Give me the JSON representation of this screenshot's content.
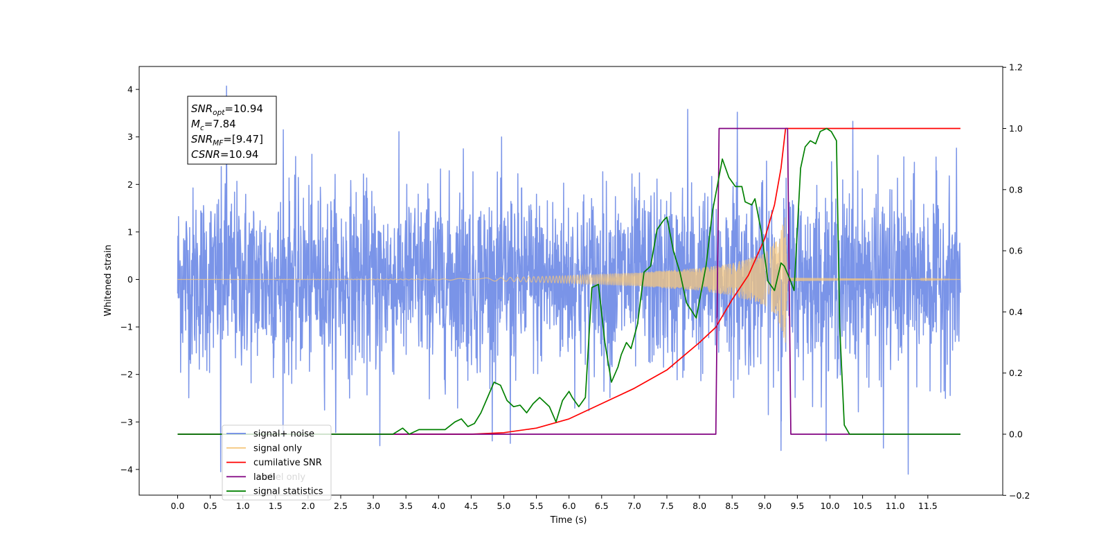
{
  "chart_data": {
    "type": "line",
    "xlabel": "Time (s)",
    "ylabel": "Whitened strain",
    "xlim": [
      -0.6,
      12.6
    ],
    "ylim": [
      -4.5,
      4.45
    ],
    "ylim_right": [
      -0.2,
      1.2
    ],
    "x_ticks": [
      "0.0",
      "0.5",
      "1.0",
      "1.5",
      "2.0",
      "2.5",
      "3.0",
      "3.5",
      "4.0",
      "4.5",
      "5.0",
      "5.5",
      "6.0",
      "6.5",
      "7.0",
      "7.5",
      "8.0",
      "8.5",
      "9.0",
      "9.5",
      "10.0",
      "10.5",
      "11.0",
      "11.5"
    ],
    "y_ticks_left": [
      "−4",
      "−3",
      "−2",
      "−1",
      "0",
      "1",
      "2",
      "3",
      "4"
    ],
    "y_ticks_right": [
      "−0.2",
      "0.0",
      "0.2",
      "0.4",
      "0.6",
      "0.8",
      "1.0",
      "1.2"
    ],
    "annotation": {
      "lines": [
        {
          "name": "SNR",
          "sub": "opt",
          "value": "=10.94"
        },
        {
          "name": "M",
          "sub": "c",
          "value": "=7.84"
        },
        {
          "name": "SNR",
          "sub": "MF",
          "value": "=[9.47]"
        },
        {
          "name": "CSNR",
          "sub": "",
          "value": "=10.94"
        }
      ]
    },
    "legend": {
      "placement": "lower-left",
      "entries": [
        {
          "label": "signal+ noise",
          "color": "#6b88e6"
        },
        {
          "label": "signal only",
          "color": "#f5c77e"
        },
        {
          "label": "cumilative SNR",
          "color": "#ff0000"
        },
        {
          "label": "label",
          "color": "#800080"
        },
        {
          "label": "signal statistics",
          "color": "#008000"
        }
      ],
      "occluded_text": [
        "label only"
      ]
    },
    "series": [
      {
        "name": "signal+ noise",
        "axis": "left",
        "color": "#6b88e6",
        "description_kind": "noise",
        "x_range": [
          0.0,
          12.0
        ],
        "sigma": 0.95,
        "peaks": [
          {
            "x": 0.75,
            "y": 4.07
          },
          {
            "x": 7.82,
            "y": 3.58
          },
          {
            "x": 8.58,
            "y": 3.52
          },
          {
            "x": 10.35,
            "y": 3.33
          },
          {
            "x": 9.25,
            "y": -3.6
          },
          {
            "x": 11.2,
            "y": -4.1
          },
          {
            "x": 0.66,
            "y": -4.05
          },
          {
            "x": 10.82,
            "y": -3.55
          },
          {
            "x": 3.1,
            "y": -3.5
          },
          {
            "x": 5.1,
            "y": -3.45
          },
          {
            "x": 1.62,
            "y": 3.15
          },
          {
            "x": 4.38,
            "y": 2.75
          }
        ]
      },
      {
        "name": "signal only",
        "axis": "left",
        "color": "#f5c77e",
        "description_kind": "chirp",
        "x_range": [
          0.0,
          12.0
        ],
        "merger_time": 9.32,
        "envelope": [
          {
            "x": 0.0,
            "y": 0.0
          },
          {
            "x": 4.0,
            "y": 0.01
          },
          {
            "x": 5.0,
            "y": 0.04
          },
          {
            "x": 6.0,
            "y": 0.08
          },
          {
            "x": 7.0,
            "y": 0.14
          },
          {
            "x": 8.0,
            "y": 0.24
          },
          {
            "x": 8.5,
            "y": 0.34
          },
          {
            "x": 9.0,
            "y": 0.55
          },
          {
            "x": 9.2,
            "y": 0.85
          },
          {
            "x": 9.32,
            "y": 1.35
          },
          {
            "x": 9.35,
            "y": 0.05
          },
          {
            "x": 12.0,
            "y": 0.0
          }
        ]
      },
      {
        "name": "cumilative SNR",
        "axis": "right",
        "color": "#ff0000",
        "points": [
          [
            0.0,
            0.0
          ],
          [
            4.5,
            0.0
          ],
          [
            5.0,
            0.005
          ],
          [
            5.5,
            0.02
          ],
          [
            6.0,
            0.05
          ],
          [
            6.5,
            0.1
          ],
          [
            7.0,
            0.15
          ],
          [
            7.5,
            0.21
          ],
          [
            8.0,
            0.3
          ],
          [
            8.25,
            0.35
          ],
          [
            8.5,
            0.44
          ],
          [
            8.75,
            0.52
          ],
          [
            9.0,
            0.64
          ],
          [
            9.15,
            0.75
          ],
          [
            9.25,
            0.87
          ],
          [
            9.32,
            1.0
          ],
          [
            12.0,
            1.0
          ]
        ]
      },
      {
        "name": "label",
        "axis": "right",
        "color": "#800080",
        "points": [
          [
            0.0,
            0.0
          ],
          [
            8.25,
            0.0
          ],
          [
            8.3,
            1.0
          ],
          [
            9.35,
            1.0
          ],
          [
            9.4,
            0.0
          ],
          [
            12.0,
            0.0
          ]
        ]
      },
      {
        "name": "signal statistics",
        "axis": "right",
        "color": "#008000",
        "points": [
          [
            0.0,
            0.0
          ],
          [
            3.3,
            0.0
          ],
          [
            3.45,
            0.02
          ],
          [
            3.55,
            0.0
          ],
          [
            3.7,
            0.015
          ],
          [
            3.85,
            0.015
          ],
          [
            4.1,
            0.015
          ],
          [
            4.25,
            0.04
          ],
          [
            4.35,
            0.05
          ],
          [
            4.45,
            0.025
          ],
          [
            4.55,
            0.035
          ],
          [
            4.65,
            0.07
          ],
          [
            4.75,
            0.12
          ],
          [
            4.85,
            0.17
          ],
          [
            4.95,
            0.16
          ],
          [
            5.05,
            0.11
          ],
          [
            5.15,
            0.09
          ],
          [
            5.25,
            0.095
          ],
          [
            5.35,
            0.07
          ],
          [
            5.45,
            0.1
          ],
          [
            5.55,
            0.12
          ],
          [
            5.6,
            0.11
          ],
          [
            5.7,
            0.09
          ],
          [
            5.8,
            0.04
          ],
          [
            5.9,
            0.11
          ],
          [
            6.0,
            0.14
          ],
          [
            6.05,
            0.12
          ],
          [
            6.15,
            0.09
          ],
          [
            6.25,
            0.12
          ],
          [
            6.35,
            0.48
          ],
          [
            6.45,
            0.49
          ],
          [
            6.55,
            0.3
          ],
          [
            6.65,
            0.17
          ],
          [
            6.75,
            0.22
          ],
          [
            6.8,
            0.26
          ],
          [
            6.88,
            0.3
          ],
          [
            6.95,
            0.28
          ],
          [
            7.05,
            0.36
          ],
          [
            7.15,
            0.53
          ],
          [
            7.25,
            0.55
          ],
          [
            7.35,
            0.67
          ],
          [
            7.45,
            0.7
          ],
          [
            7.5,
            0.71
          ],
          [
            7.6,
            0.6
          ],
          [
            7.7,
            0.53
          ],
          [
            7.8,
            0.43
          ],
          [
            7.95,
            0.38
          ],
          [
            8.1,
            0.55
          ],
          [
            8.2,
            0.73
          ],
          [
            8.28,
            0.82
          ],
          [
            8.35,
            0.9
          ],
          [
            8.45,
            0.84
          ],
          [
            8.55,
            0.81
          ],
          [
            8.65,
            0.81
          ],
          [
            8.7,
            0.76
          ],
          [
            8.8,
            0.75
          ],
          [
            8.85,
            0.77
          ],
          [
            8.95,
            0.66
          ],
          [
            9.05,
            0.5
          ],
          [
            9.15,
            0.47
          ],
          [
            9.25,
            0.56
          ],
          [
            9.3,
            0.55
          ],
          [
            9.38,
            0.51
          ],
          [
            9.45,
            0.47
          ],
          [
            9.55,
            0.87
          ],
          [
            9.62,
            0.94
          ],
          [
            9.7,
            0.96
          ],
          [
            9.78,
            0.95
          ],
          [
            9.85,
            0.99
          ],
          [
            9.95,
            1.0
          ],
          [
            10.02,
            0.99
          ],
          [
            10.1,
            0.96
          ],
          [
            10.15,
            0.35
          ],
          [
            10.22,
            0.03
          ],
          [
            10.3,
            0.0
          ],
          [
            12.0,
            0.0
          ]
        ]
      }
    ],
    "grid": false
  }
}
